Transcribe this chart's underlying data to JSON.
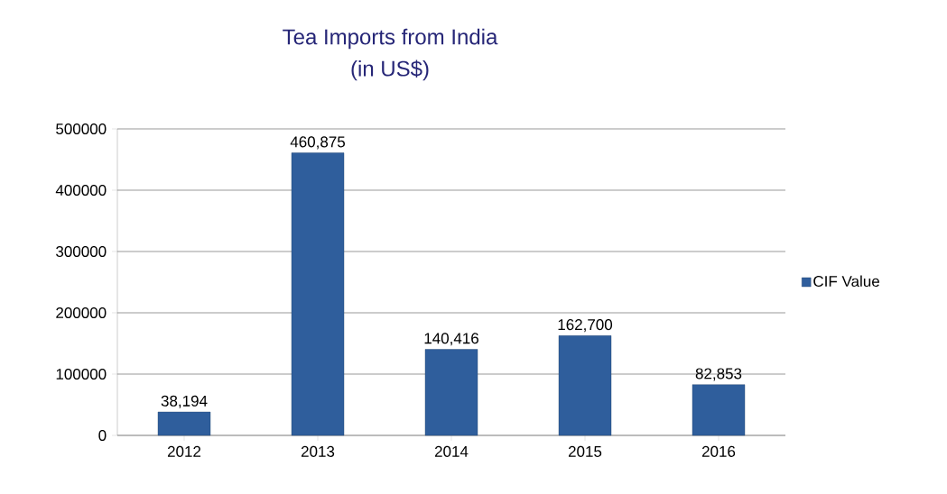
{
  "chart_data": {
    "type": "bar",
    "title": "Tea Imports from India",
    "subtitle": "(in US$)",
    "categories": [
      "2012",
      "2013",
      "2014",
      "2015",
      "2016"
    ],
    "series": [
      {
        "name": "CIF Value",
        "color": "#2f5e9c",
        "values": [
          38194,
          460875,
          140416,
          162700,
          82853
        ],
        "value_labels": [
          "38,194",
          "460,875",
          "140,416",
          "162,700",
          "82,853"
        ]
      }
    ],
    "ylim": [
      0,
      500000
    ],
    "yticks": [
      0,
      100000,
      200000,
      300000,
      400000,
      500000
    ],
    "grid": "y",
    "legend": "right"
  }
}
